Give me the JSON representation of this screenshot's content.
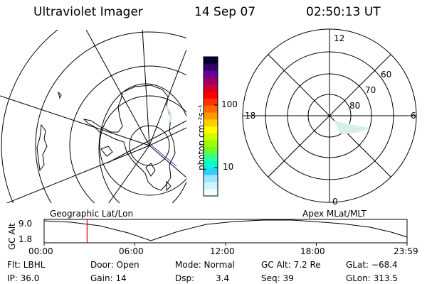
{
  "header": {
    "instrument": "Ultraviolet Imager",
    "date": "14 Sep 07",
    "time": "02:50:13 UT"
  },
  "colorbar": {
    "label": "photon cm⁻²s⁻¹",
    "ticks": [
      {
        "value": 100,
        "label": "100"
      },
      {
        "value": 10,
        "label": "10"
      }
    ],
    "colors": [
      "#000033",
      "#330066",
      "#660099",
      "#990066",
      "#cc0033",
      "#ff0000",
      "#ff3300",
      "#ff6600",
      "#ff9900",
      "#ffcc00",
      "#ffff00",
      "#ccff00",
      "#99ff00",
      "#66ff33",
      "#33ff99",
      "#00ffcc",
      "#33ccff",
      "#99e6ff",
      "#ccf5ff",
      "#eeffff"
    ]
  },
  "panels": {
    "left_label": "Geographic Lat/Lon",
    "right_label": "Apex MLat/MLT"
  },
  "polar": {
    "mlt_labels": {
      "top": "12",
      "left": "18",
      "right": "6",
      "bottom": "0"
    },
    "mlat_labels": [
      "60",
      "70",
      "80"
    ]
  },
  "altitude_plot": {
    "ylabel": "GC Alt",
    "yticks": [
      "9.0",
      "1.8"
    ],
    "xticks": [
      "00:00",
      "06:00",
      "12:00",
      "18:00",
      "23:59"
    ],
    "marker_time_hours": 2.84
  },
  "status": {
    "filter": "Flt: LBHL",
    "door": "Door: Open",
    "mode": "Mode: Normal",
    "gc_alt": "GC Alt: 7.2 Re",
    "glat": "GLat: −68.4",
    "ip": "IP: 36.0",
    "gain": "Gain: 14",
    "dsp_label": "Dsp:",
    "dsp_value": "3.4",
    "seq": "Seq: 39",
    "glon": "GLon: 313.5"
  }
}
